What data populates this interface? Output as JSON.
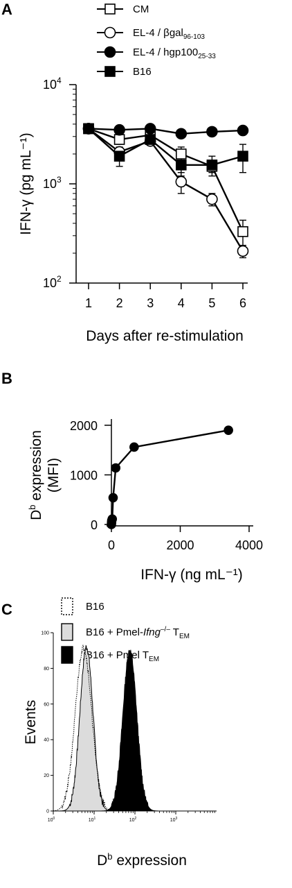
{
  "chart_data": [
    {
      "panel": "A",
      "type": "line",
      "yscale": "log",
      "x": [
        1,
        2,
        3,
        4,
        5,
        6
      ],
      "xlim": [
        1,
        6
      ],
      "ylim": [
        100,
        10000
      ],
      "xlabel": "Days after re-stimulation",
      "ylabel": "IFN-γ (pg mL⁻¹)",
      "yticks": [
        {
          "base": "10",
          "exp": "2"
        },
        {
          "base": "10",
          "exp": "3"
        },
        {
          "base": "10",
          "exp": "4"
        }
      ],
      "legend": "top",
      "series": [
        {
          "name": "CM",
          "marker": "square-open",
          "values": [
            3600,
            2800,
            3100,
            2000,
            1500,
            330
          ],
          "err": [
            200,
            300,
            300,
            350,
            200,
            100
          ]
        },
        {
          "name": "EL-4 / βgal",
          "name_sub": "96-103",
          "marker": "circle-open",
          "values": [
            3600,
            2100,
            2700,
            1050,
            700,
            210
          ],
          "err": [
            200,
            250,
            250,
            250,
            100,
            30
          ]
        },
        {
          "name": "EL-4 / hgp100",
          "name_sub": "25-33",
          "marker": "circle-filled",
          "values": [
            3600,
            3500,
            3600,
            3200,
            3350,
            3450
          ],
          "err": [
            150,
            150,
            150,
            150,
            150,
            150
          ]
        },
        {
          "name": "B16",
          "marker": "square-filled",
          "values": [
            3600,
            1900,
            2800,
            1550,
            1550,
            1900
          ],
          "err": [
            200,
            400,
            300,
            350,
            350,
            600
          ]
        }
      ]
    },
    {
      "panel": "B",
      "type": "line",
      "x": [
        0,
        5,
        10,
        25,
        50,
        125,
        660,
        3400
      ],
      "values": [
        0,
        40,
        80,
        110,
        540,
        1140,
        1560,
        1900
      ],
      "xlim": [
        0,
        4000
      ],
      "ylim": [
        0,
        2000
      ],
      "xticks": [
        "0",
        "2000",
        "4000"
      ],
      "yticks": [
        "0",
        "1000",
        "2000"
      ],
      "xlabel": "IFN-γ (ng mL⁻¹)",
      "ylabel_main": "D",
      "ylabel_sup": "b",
      "ylabel_rest": " expression",
      "ylabel_line2": "(MFI)"
    },
    {
      "panel": "C",
      "type": "area",
      "xscale": "log",
      "xlim": [
        1,
        10000
      ],
      "ylim": [
        0,
        100
      ],
      "xticks": [
        {
          "base": "10",
          "exp": "0"
        },
        {
          "base": "10",
          "exp": "1"
        },
        {
          "base": "10",
          "exp": "2"
        },
        {
          "base": "10",
          "exp": "3"
        }
      ],
      "yticks": [
        "0",
        "20",
        "40",
        "60",
        "80",
        "100"
      ],
      "xlabel_main": "D",
      "xlabel_sup": "b",
      "xlabel_rest": " expression",
      "ylabel": "Events",
      "legend": "top",
      "series": [
        {
          "name": "B16",
          "style": "dotted",
          "peak_x": 5.5,
          "peak_y": 92
        },
        {
          "name": "B16 + Pmel-",
          "name_italic": "Ifng",
          "name_sup": "–/–",
          "name_tail": " T",
          "name_sub": "EM",
          "style": "light-gray",
          "peak_x": 6.5,
          "peak_y": 92
        },
        {
          "name": "B16 + Pmel T",
          "name_sub": "EM",
          "style": "black",
          "peak_x": 75,
          "peak_y": 90
        }
      ]
    }
  ],
  "panels": {
    "a": "A",
    "b": "B",
    "c": "C"
  }
}
